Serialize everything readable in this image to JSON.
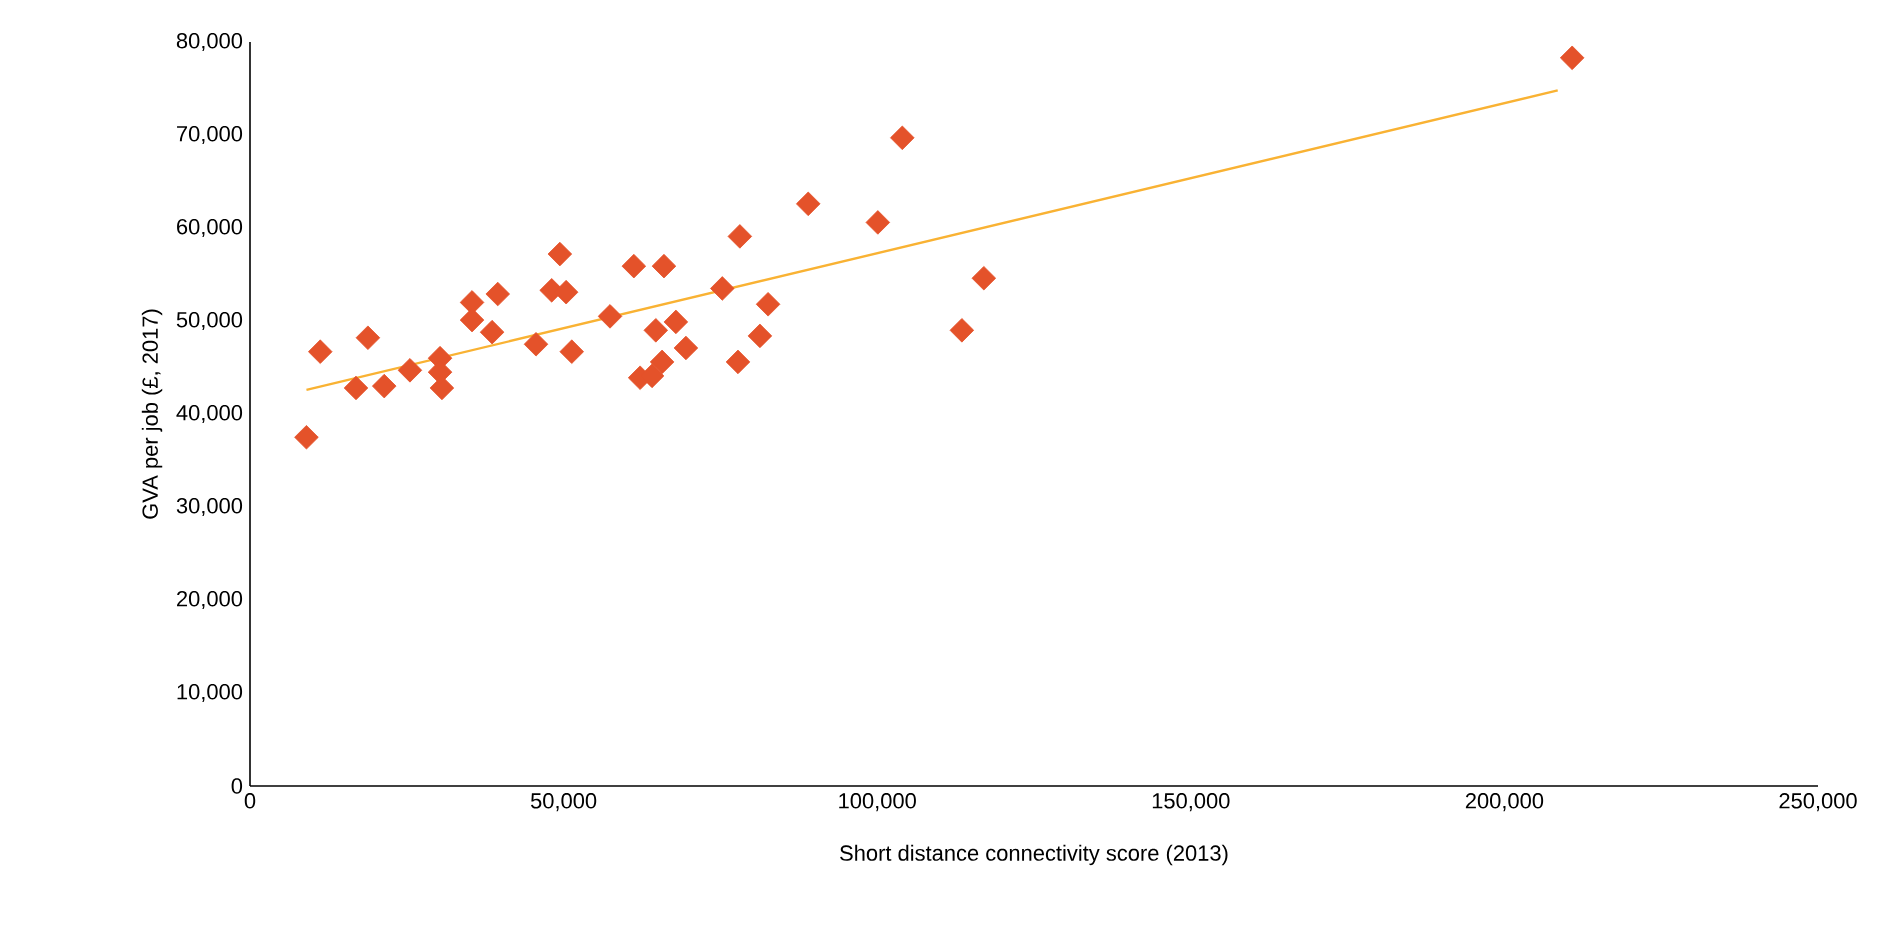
{
  "chart_data": {
    "type": "scatter",
    "xlabel": "Short distance connectivity score (2013)",
    "ylabel": "GVA per job (£, 2017)",
    "marker": "diamond",
    "xlim": [
      0,
      250000
    ],
    "ylim": [
      0,
      80000
    ],
    "xticks": [
      {
        "value": 0,
        "label": "0"
      },
      {
        "value": 50000,
        "label": "50,000"
      },
      {
        "value": 100000,
        "label": "100,000"
      },
      {
        "value": 150000,
        "label": "150,000"
      },
      {
        "value": 200000,
        "label": "200,000"
      },
      {
        "value": 250000,
        "label": "250,000"
      }
    ],
    "yticks": [
      {
        "value": 0,
        "label": "0"
      },
      {
        "value": 10000,
        "label": "10,000"
      },
      {
        "value": 20000,
        "label": "20,000"
      },
      {
        "value": 30000,
        "label": "30,000"
      },
      {
        "value": 40000,
        "label": "40,000"
      },
      {
        "value": 50000,
        "label": "50,000"
      },
      {
        "value": 60000,
        "label": "60,000"
      },
      {
        "value": 70000,
        "label": "70,000"
      },
      {
        "value": 80000,
        "label": "80,000"
      }
    ],
    "series": [
      {
        "color": "#e4522a",
        "x": [
          9000,
          11200,
          16900,
          18800,
          21400,
          25500,
          30300,
          30600,
          30300,
          35400,
          35400,
          38600,
          39500,
          45600,
          48100,
          49400,
          50400,
          51300,
          57400,
          61200,
          62200,
          64100,
          64700,
          65700,
          66000,
          67900,
          69500,
          75300,
          77800,
          78100,
          81300,
          82600,
          89000,
          100100,
          104000,
          113500,
          117000,
          210800
        ],
        "values": [
          37500,
          46700,
          42800,
          48200,
          43000,
          44700,
          46000,
          42800,
          44500,
          52000,
          50100,
          48800,
          52900,
          47500,
          53300,
          57200,
          53100,
          46700,
          50500,
          55900,
          43900,
          44100,
          49000,
          45600,
          55900,
          49900,
          47100,
          53500,
          45600,
          59100,
          48400,
          51800,
          62600,
          60600,
          69700,
          49000,
          54600,
          78300
        ]
      },
      {
        "type": "line",
        "color": "#f9b233",
        "marker": "none",
        "x": [
          9000,
          208500
        ],
        "values": [
          42600,
          74800
        ]
      }
    ]
  }
}
